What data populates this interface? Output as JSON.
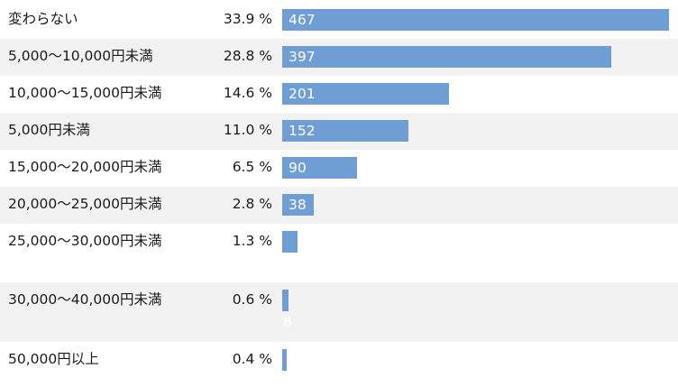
{
  "chart_data": {
    "type": "bar",
    "orientation": "horizontal",
    "title": "",
    "xlabel": "",
    "ylabel": "",
    "max_value": 467,
    "bar_color": "#6f9ed4",
    "shade_color": "#f2f2f2",
    "categories": [
      "変わらない",
      "5,000〜10,000円未満",
      "10,000〜15,000円未満",
      "5,000円未満",
      "15,000〜20,000円未満",
      "20,000〜25,000円未満",
      "25,000〜30,000円未満",
      "30,000〜40,000円未満",
      "50,000円以上"
    ],
    "percent_labels": [
      "33.9 %",
      "28.8 %",
      "14.6 %",
      "11.0 %",
      "6.5 %",
      "2.8 %",
      "1.3 %",
      "0.6 %",
      "0.4 %"
    ],
    "values": [
      467,
      397,
      201,
      152,
      90,
      38,
      18,
      8,
      5
    ],
    "value_labels": [
      "467",
      "397",
      "201",
      "152",
      "90",
      "38",
      "",
      "8",
      ""
    ]
  }
}
